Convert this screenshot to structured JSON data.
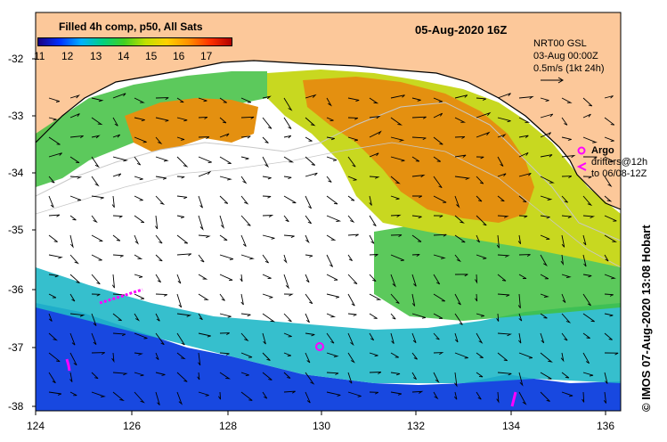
{
  "legend": {
    "title": "Filled 4h comp, p50, All Sats",
    "colorbar_ticks": [
      "11",
      "12",
      "13",
      "14",
      "15",
      "16",
      "17"
    ]
  },
  "header": {
    "date": "05-Aug-2020 16Z",
    "nrt_line1": "NRT00 GSL",
    "nrt_line2": "03-Aug 00:00Z",
    "nrt_line3": "0.5m/s (1kt 24h)"
  },
  "argo": {
    "label": "Argo",
    "drifters_line1": "drifters@12h",
    "drifters_line2": "to 06/08-12Z",
    "marker_color": "#ff00ff"
  },
  "credit": "© IMOS 07-Aug-2020 13:08 Hobart",
  "axes": {
    "x_ticks": [
      "124",
      "126",
      "128",
      "130",
      "132",
      "134",
      "136"
    ],
    "y_ticks": [
      "-32",
      "-33",
      "-34",
      "-35",
      "-36",
      "-37",
      "-38"
    ]
  },
  "colors": {
    "land": "#fcc89a",
    "warm": "#e08c10",
    "mid": "#9fd020",
    "cool": "#20b0d0",
    "cold": "#1040e0",
    "drifter": "#ff00ff"
  }
}
